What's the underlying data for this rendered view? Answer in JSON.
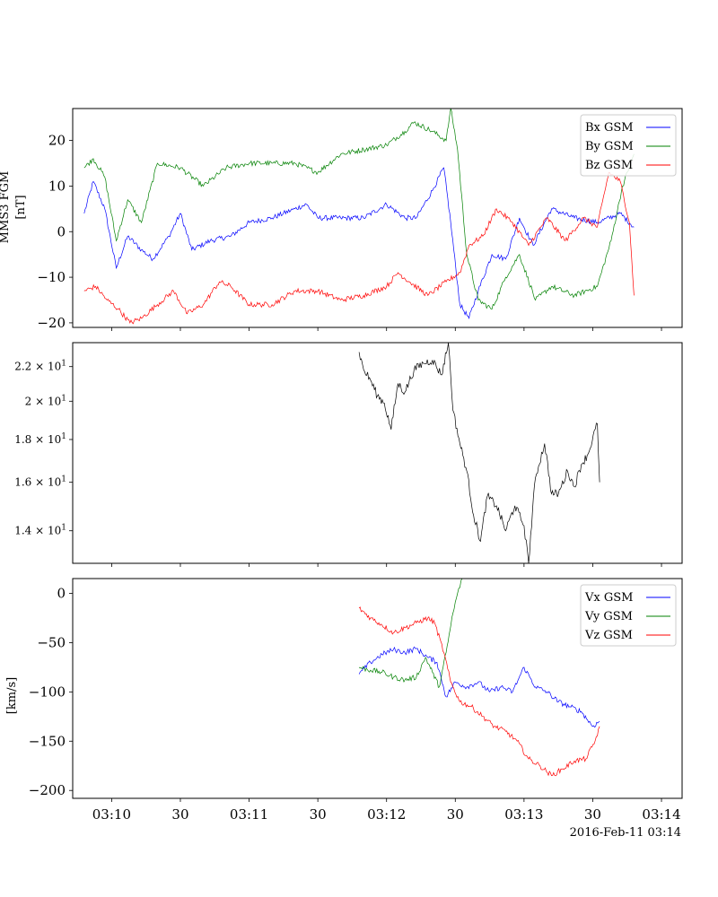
{
  "chart_data": [
    {
      "type": "line",
      "ylabel_lines": [
        "MMS3 FGM",
        "[nT]"
      ],
      "xlim": [
        "03:09:43",
        "03:14:09"
      ],
      "ylim": [
        -21,
        27
      ],
      "yticks": [
        -20,
        -10,
        0,
        10,
        20
      ],
      "ytick_labels": [
        "−20",
        "−10",
        "0",
        "10",
        "20"
      ],
      "legend_position": "top-right",
      "series": [
        {
          "name": "Bx GSM",
          "color": "#0000ff",
          "points": [
            [
              "03:09:48",
              4
            ],
            [
              "03:09:52",
              11
            ],
            [
              "03:09:57",
              5
            ],
            [
              "03:10:02",
              -8
            ],
            [
              "03:10:07",
              -1
            ],
            [
              "03:10:13",
              -4
            ],
            [
              "03:10:18",
              -6
            ],
            [
              "03:10:25",
              -1
            ],
            [
              "03:10:30",
              4
            ],
            [
              "03:10:35",
              -4
            ],
            [
              "03:10:43",
              -2
            ],
            [
              "03:10:52",
              -1
            ],
            [
              "03:11:00",
              2
            ],
            [
              "03:11:10",
              3
            ],
            [
              "03:11:20",
              5
            ],
            [
              "03:11:25",
              6
            ],
            [
              "03:11:30",
              3
            ],
            [
              "03:11:40",
              3
            ],
            [
              "03:11:50",
              3
            ],
            [
              "03:12:00",
              6
            ],
            [
              "03:12:08",
              3
            ],
            [
              "03:12:13",
              3
            ],
            [
              "03:12:20",
              9
            ],
            [
              "03:12:25",
              14
            ],
            [
              "03:12:28",
              2
            ],
            [
              "03:12:32",
              -16
            ],
            [
              "03:12:36",
              -19
            ],
            [
              "03:12:40",
              -13
            ],
            [
              "03:12:46",
              -5
            ],
            [
              "03:12:52",
              -6
            ],
            [
              "03:12:58",
              3
            ],
            [
              "03:13:04",
              -3
            ],
            [
              "03:13:12",
              5
            ],
            [
              "03:13:22",
              3
            ],
            [
              "03:13:32",
              2
            ],
            [
              "03:13:42",
              4
            ],
            [
              "03:13:48",
              1
            ]
          ]
        },
        {
          "name": "By GSM",
          "color": "#008000",
          "points": [
            [
              "03:09:48",
              14
            ],
            [
              "03:09:52",
              16
            ],
            [
              "03:09:57",
              12
            ],
            [
              "03:10:02",
              -2
            ],
            [
              "03:10:07",
              7
            ],
            [
              "03:10:13",
              2
            ],
            [
              "03:10:20",
              15
            ],
            [
              "03:10:30",
              14
            ],
            [
              "03:10:40",
              10
            ],
            [
              "03:10:50",
              14
            ],
            [
              "03:11:00",
              15
            ],
            [
              "03:11:10",
              15
            ],
            [
              "03:11:20",
              15
            ],
            [
              "03:11:30",
              13
            ],
            [
              "03:11:40",
              17
            ],
            [
              "03:11:50",
              18
            ],
            [
              "03:12:00",
              19
            ],
            [
              "03:12:08",
              22
            ],
            [
              "03:12:12",
              24
            ],
            [
              "03:12:20",
              22
            ],
            [
              "03:12:26",
              20
            ],
            [
              "03:12:28",
              27
            ],
            [
              "03:12:31",
              18
            ],
            [
              "03:12:35",
              -5
            ],
            [
              "03:12:40",
              -15
            ],
            [
              "03:12:46",
              -17
            ],
            [
              "03:12:52",
              -10
            ],
            [
              "03:12:58",
              -5
            ],
            [
              "03:13:05",
              -15
            ],
            [
              "03:13:12",
              -12
            ],
            [
              "03:13:22",
              -14
            ],
            [
              "03:13:32",
              -12
            ],
            [
              "03:13:38",
              -2
            ],
            [
              "03:13:43",
              10
            ],
            [
              "03:13:48",
              17
            ]
          ]
        },
        {
          "name": "Bz GSM",
          "color": "#ff0000",
          "points": [
            [
              "03:09:48",
              -13
            ],
            [
              "03:09:53",
              -12
            ],
            [
              "03:09:58",
              -15
            ],
            [
              "03:10:03",
              -17
            ],
            [
              "03:10:08",
              -20
            ],
            [
              "03:10:13",
              -19
            ],
            [
              "03:10:20",
              -16
            ],
            [
              "03:10:27",
              -13
            ],
            [
              "03:10:33",
              -18
            ],
            [
              "03:10:40",
              -16
            ],
            [
              "03:10:47",
              -11
            ],
            [
              "03:10:52",
              -12
            ],
            [
              "03:11:00",
              -16
            ],
            [
              "03:11:10",
              -16
            ],
            [
              "03:11:20",
              -13
            ],
            [
              "03:11:30",
              -13
            ],
            [
              "03:11:40",
              -15
            ],
            [
              "03:11:50",
              -14
            ],
            [
              "03:12:00",
              -12
            ],
            [
              "03:12:05",
              -9
            ],
            [
              "03:12:10",
              -11
            ],
            [
              "03:12:18",
              -14
            ],
            [
              "03:12:26",
              -11
            ],
            [
              "03:12:32",
              -9
            ],
            [
              "03:12:36",
              -3
            ],
            [
              "03:12:42",
              -1
            ],
            [
              "03:12:48",
              5
            ],
            [
              "03:12:55",
              2
            ],
            [
              "03:13:02",
              -3
            ],
            [
              "03:13:10",
              3
            ],
            [
              "03:13:18",
              -2
            ],
            [
              "03:13:26",
              3
            ],
            [
              "03:13:32",
              1
            ],
            [
              "03:13:37",
              13
            ],
            [
              "03:13:42",
              11
            ],
            [
              "03:13:46",
              2
            ],
            [
              "03:13:48",
              -14
            ]
          ]
        }
      ]
    },
    {
      "type": "line",
      "yscale": "log",
      "xlim": [
        "03:09:43",
        "03:14:09"
      ],
      "ylim": [
        12.8,
        23.5
      ],
      "yticks": [
        14,
        16,
        18,
        20,
        22
      ],
      "ytick_labels": [
        [
          "1.4",
          "10",
          "1"
        ],
        [
          "1.6",
          "10",
          "1"
        ],
        [
          "1.8",
          "10",
          "1"
        ],
        [
          "2",
          "10",
          "1"
        ],
        [
          "2.2",
          "10",
          "1"
        ]
      ],
      "series": [
        {
          "color": "#000000",
          "points": [
            [
              "03:11:48",
              22.9
            ],
            [
              "03:11:50",
              21.8
            ],
            [
              "03:11:53",
              21.2
            ],
            [
              "03:11:56",
              20.3
            ],
            [
              "03:11:59",
              19.9
            ],
            [
              "03:12:02",
              18.5
            ],
            [
              "03:12:05",
              21.0
            ],
            [
              "03:12:08",
              20.5
            ],
            [
              "03:12:12",
              21.8
            ],
            [
              "03:12:16",
              22.2
            ],
            [
              "03:12:20",
              22.4
            ],
            [
              "03:12:24",
              21.5
            ],
            [
              "03:12:27",
              23.5
            ],
            [
              "03:12:29",
              19.5
            ],
            [
              "03:12:32",
              17.8
            ],
            [
              "03:12:35",
              16.5
            ],
            [
              "03:12:38",
              14.6
            ],
            [
              "03:12:41",
              13.6
            ],
            [
              "03:12:44",
              15.4
            ],
            [
              "03:12:48",
              15.0
            ],
            [
              "03:12:52",
              14.0
            ],
            [
              "03:12:56",
              15.0
            ],
            [
              "03:13:00",
              14.2
            ],
            [
              "03:13:02",
              12.8
            ],
            [
              "03:13:05",
              16.2
            ],
            [
              "03:13:09",
              17.8
            ],
            [
              "03:13:12",
              15.5
            ],
            [
              "03:13:15",
              15.5
            ],
            [
              "03:13:19",
              16.5
            ],
            [
              "03:13:22",
              15.8
            ],
            [
              "03:13:25",
              16.8
            ],
            [
              "03:13:28",
              17.3
            ],
            [
              "03:13:32",
              18.8
            ],
            [
              "03:13:33",
              16.0
            ]
          ]
        }
      ]
    },
    {
      "type": "line",
      "ylabel_lines": [
        "[km/s]"
      ],
      "xlim": [
        "03:09:43",
        "03:14:09"
      ],
      "ylim": [
        -208,
        15
      ],
      "yticks": [
        -200,
        -150,
        -100,
        -50,
        0
      ],
      "ytick_labels": [
        "−200",
        "−150",
        "−100",
        "−50",
        "0"
      ],
      "legend_position": "top-right",
      "series": [
        {
          "name": "Vx GSM",
          "color": "#0000ff",
          "points": [
            [
              "03:11:48",
              -82
            ],
            [
              "03:11:53",
              -70
            ],
            [
              "03:11:58",
              -62
            ],
            [
              "03:12:03",
              -57
            ],
            [
              "03:12:08",
              -60
            ],
            [
              "03:12:13",
              -56
            ],
            [
              "03:12:18",
              -65
            ],
            [
              "03:12:22",
              -70
            ],
            [
              "03:12:26",
              -105
            ],
            [
              "03:12:30",
              -90
            ],
            [
              "03:12:35",
              -95
            ],
            [
              "03:12:40",
              -90
            ],
            [
              "03:12:45",
              -100
            ],
            [
              "03:12:50",
              -95
            ],
            [
              "03:12:55",
              -100
            ],
            [
              "03:13:00",
              -75
            ],
            [
              "03:13:05",
              -95
            ],
            [
              "03:13:10",
              -100
            ],
            [
              "03:13:15",
              -110
            ],
            [
              "03:13:20",
              -115
            ],
            [
              "03:13:25",
              -120
            ],
            [
              "03:13:30",
              -135
            ],
            [
              "03:13:33",
              -130
            ]
          ]
        },
        {
          "name": "Vy GSM",
          "color": "#008000",
          "points": [
            [
              "03:11:48",
              -75
            ],
            [
              "03:11:53",
              -78
            ],
            [
              "03:11:58",
              -80
            ],
            [
              "03:12:03",
              -85
            ],
            [
              "03:12:08",
              -88
            ],
            [
              "03:12:13",
              -85
            ],
            [
              "03:12:17",
              -65
            ],
            [
              "03:12:20",
              -80
            ],
            [
              "03:12:23",
              -95
            ],
            [
              "03:12:26",
              -60
            ],
            [
              "03:12:29",
              -20
            ],
            [
              "03:12:31",
              0
            ],
            [
              "03:12:33",
              15
            ]
          ]
        },
        {
          "name": "Vz GSM",
          "color": "#ff0000",
          "points": [
            [
              "03:11:48",
              -15
            ],
            [
              "03:11:53",
              -25
            ],
            [
              "03:11:58",
              -32
            ],
            [
              "03:12:03",
              -40
            ],
            [
              "03:12:08",
              -35
            ],
            [
              "03:12:13",
              -30
            ],
            [
              "03:12:18",
              -25
            ],
            [
              "03:12:21",
              -30
            ],
            [
              "03:12:25",
              -60
            ],
            [
              "03:12:28",
              -90
            ],
            [
              "03:12:32",
              -110
            ],
            [
              "03:12:37",
              -115
            ],
            [
              "03:12:42",
              -125
            ],
            [
              "03:12:47",
              -135
            ],
            [
              "03:12:52",
              -140
            ],
            [
              "03:12:57",
              -150
            ],
            [
              "03:13:02",
              -168
            ],
            [
              "03:13:07",
              -175
            ],
            [
              "03:13:12",
              -185
            ],
            [
              "03:13:17",
              -178
            ],
            [
              "03:13:22",
              -170
            ],
            [
              "03:13:27",
              -168
            ],
            [
              "03:13:31",
              -150
            ],
            [
              "03:13:33",
              -135
            ]
          ]
        }
      ]
    }
  ],
  "xaxis": {
    "tick_labels": [
      {
        "t": "03:10:00",
        "label": "03:10"
      },
      {
        "t": "03:10:30",
        "label": "30"
      },
      {
        "t": "03:11:00",
        "label": "03:11"
      },
      {
        "t": "03:11:30",
        "label": "30"
      },
      {
        "t": "03:12:00",
        "label": "03:12"
      },
      {
        "t": "03:12:30",
        "label": "30"
      },
      {
        "t": "03:13:00",
        "label": "03:13"
      },
      {
        "t": "03:13:30",
        "label": "30"
      },
      {
        "t": "03:14:00",
        "label": "03:14"
      }
    ],
    "offset_label": "2016-Feb-11 03:14"
  }
}
